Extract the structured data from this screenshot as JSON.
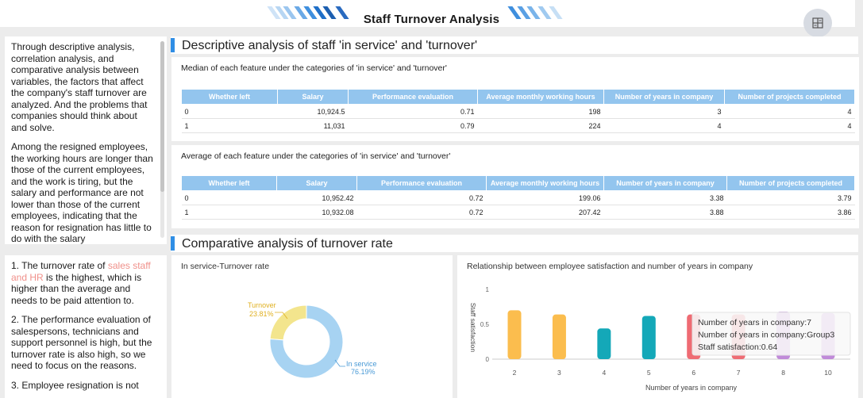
{
  "header": {
    "title": "Staff Turnover Analysis",
    "menu_icon": "grid-menu-icon"
  },
  "left_panels": {
    "top": [
      "Through descriptive analysis, correlation analysis, and comparative analysis between variables, the factors that affect the company's staff turnover are analyzed. And the problems that companies should think about and solve.",
      "Among the resigned employees, the working hours are longer than those of the current employees, and the work is tiring, but the salary and performance are not lower than those of the current employees, indicating that the reason for resignation has little to do with the salary"
    ],
    "bottom": {
      "item1_pre": "1. The turnover rate of ",
      "item1_highlight": "sales staff and HR",
      "item1_post": " is the highest, which is higher than the average and needs to be paid attention to.",
      "item2": "2. The performance evaluation of salespersons, technicians and support personnel is high, but the turnover rate is also high, so we need to focus on the reasons.",
      "item3": "3. Employee resignation is not"
    }
  },
  "section1": {
    "title": "Descriptive analysis of staff 'in service' and 'turnover'"
  },
  "median_table": {
    "title": "Median of each feature under the categories of 'in service' and 'turnover'",
    "headers": [
      "Whether left",
      "Salary",
      "Performance evaluation",
      "Average monthly working hours",
      "Number of years in company",
      "Number of projects completed"
    ],
    "rows": [
      [
        "0",
        "10,924.5",
        "0.71",
        "198",
        "3",
        "4"
      ],
      [
        "1",
        "11,031",
        "0.79",
        "224",
        "4",
        "4"
      ]
    ]
  },
  "average_table": {
    "title": "Average of each feature under the categories of 'in service' and 'turnover'",
    "headers": [
      "Whether left",
      "Salary",
      "Performance evaluation",
      "Average monthly working hours",
      "Number of years in company",
      "Number of projects completed"
    ],
    "rows": [
      [
        "0",
        "10,952.42",
        "0.72",
        "199.06",
        "3.38",
        "3.79"
      ],
      [
        "1",
        "10,932.08",
        "0.72",
        "207.42",
        "3.88",
        "3.86"
      ]
    ]
  },
  "section2": {
    "title": "Comparative analysis of turnover rate"
  },
  "chart_data": [
    {
      "type": "pie",
      "title": "In service-Turnover rate",
      "slices": [
        {
          "label": "In service",
          "percent_label": "76.19%",
          "value": 76.19,
          "color": "#a7d3f2"
        },
        {
          "label": "Turnover",
          "percent_label": "23.81%",
          "value": 23.81,
          "color": "#f3e58d"
        }
      ]
    },
    {
      "type": "bar",
      "title": "Relationship between employee satisfaction and number of years in company",
      "xlabel": "Number of years in company",
      "ylabel": "Staff satisfaction",
      "ylim": [
        0,
        1
      ],
      "yticks": [
        "0",
        "0.5",
        "1"
      ],
      "categories": [
        "2",
        "3",
        "4",
        "5",
        "6",
        "7",
        "8",
        "10"
      ],
      "values": [
        0.7,
        0.64,
        0.44,
        0.62,
        0.64,
        0.64,
        0.68,
        0.66
      ],
      "colors": [
        "#fbbd4e",
        "#fbbd4e",
        "#14a8b8",
        "#14a8b8",
        "#ef6b73",
        "#ef6b73",
        "#c08ad9",
        "#c08ad9"
      ],
      "tooltip": {
        "line1": "Number of years in company:7",
        "line2": "Number of years in company:Group3",
        "line3": "Staff satisfaction:0.64"
      }
    }
  ]
}
